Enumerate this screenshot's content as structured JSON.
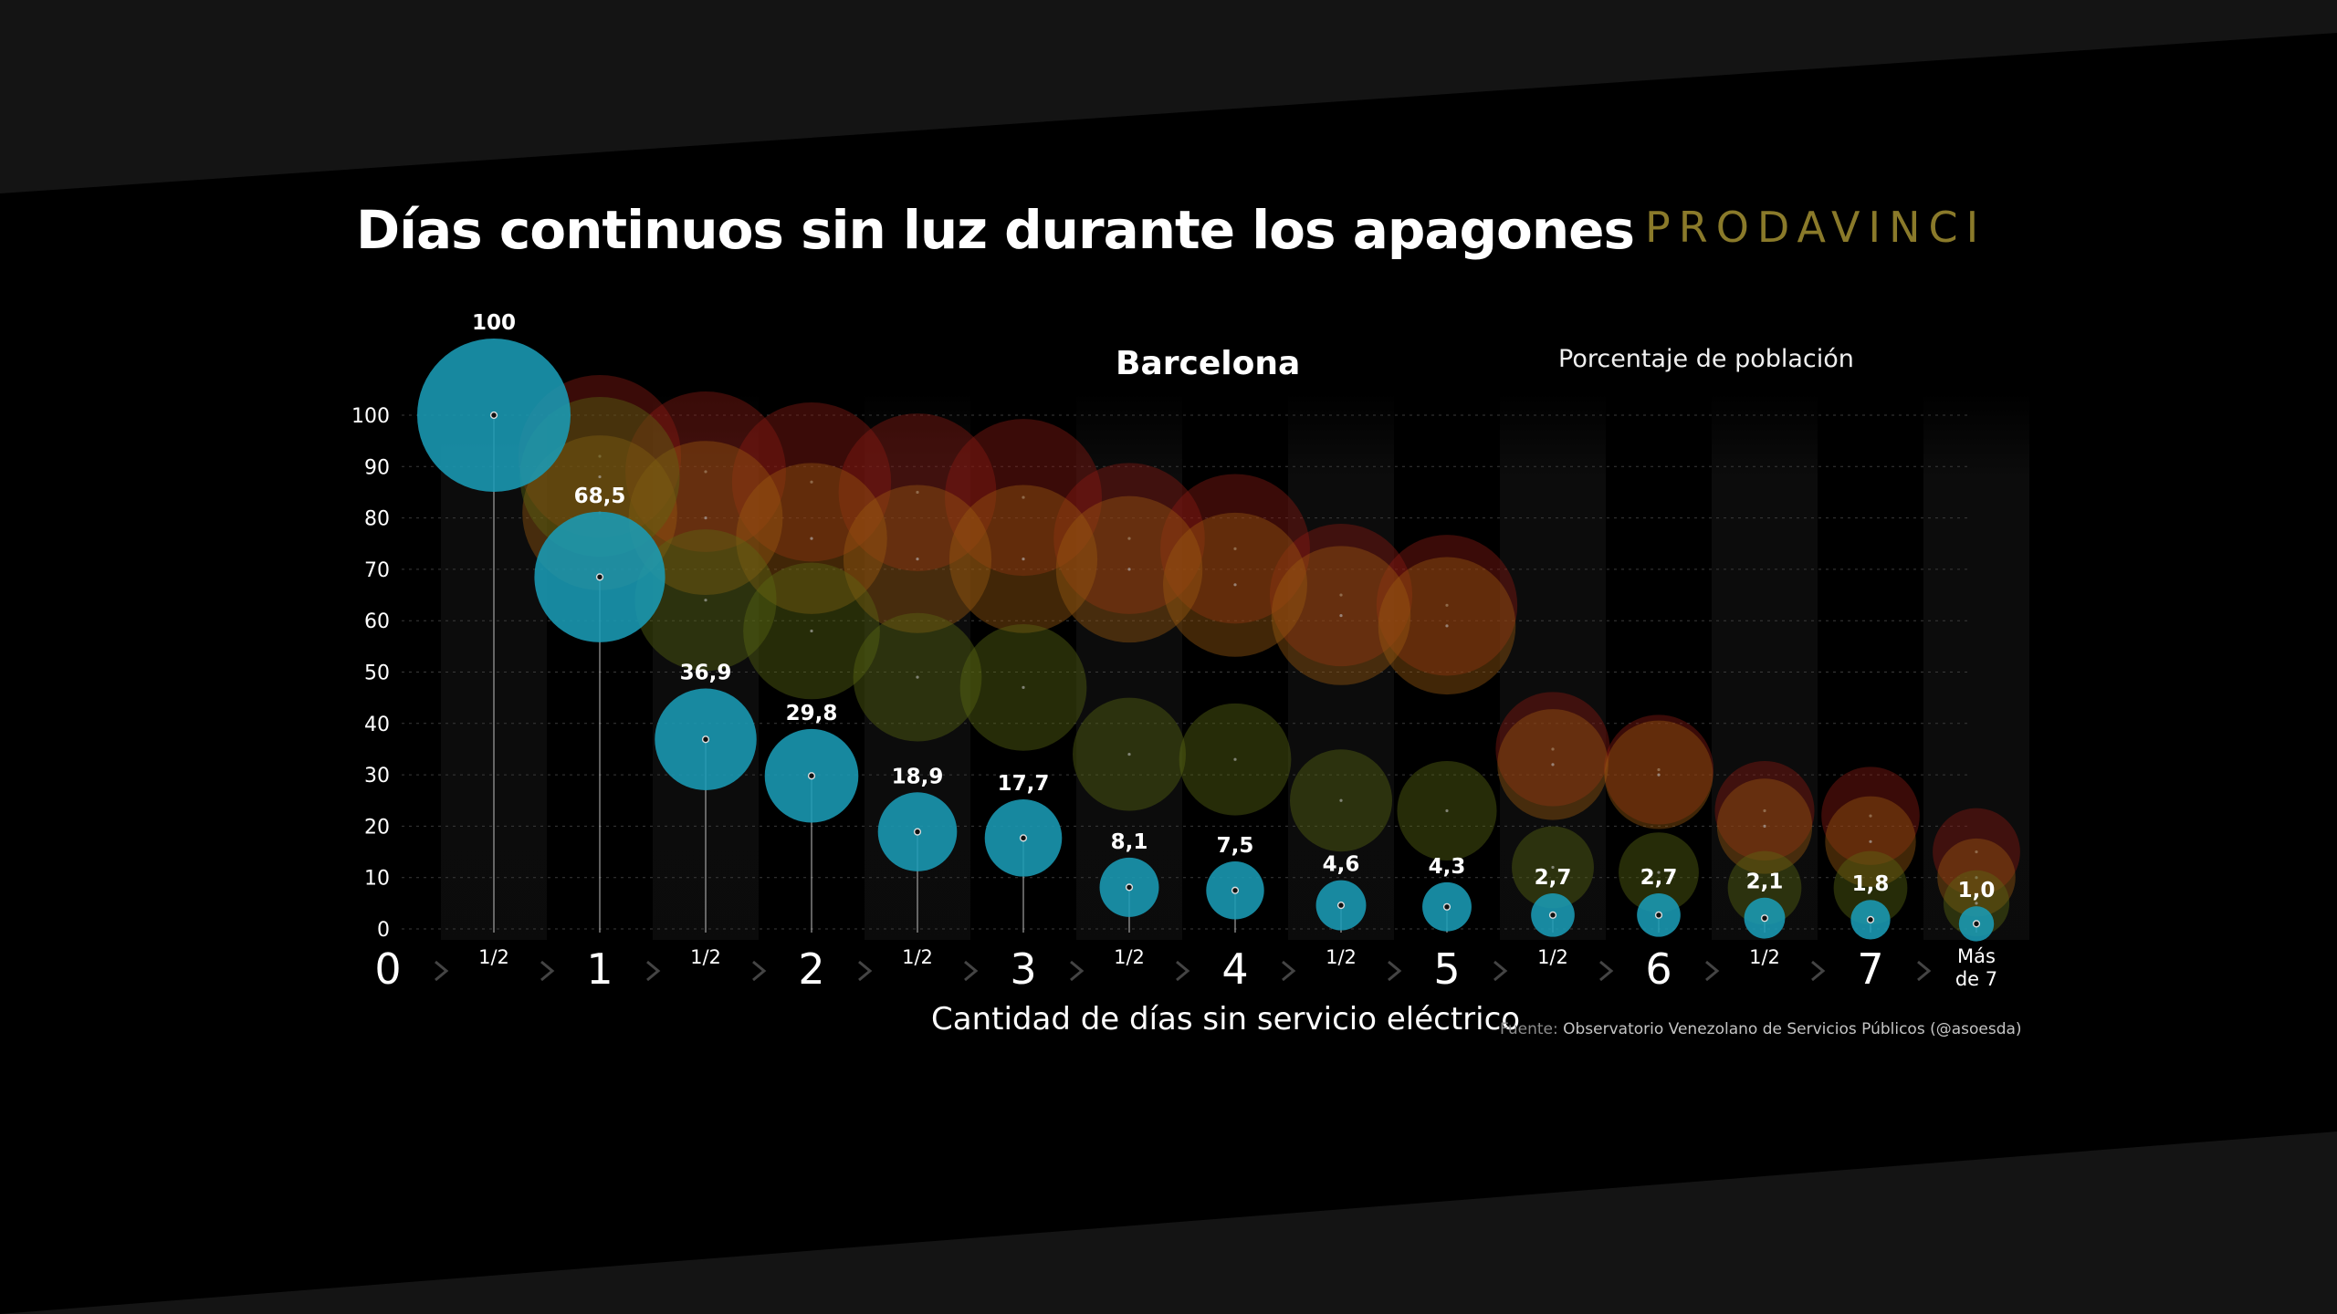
{
  "header": {
    "title": "Días continuos sin luz durante los apagones",
    "brand": "PRODAVINCI"
  },
  "subtitle_city": "Barcelona",
  "legend_note": "Porcentaje de población",
  "source": {
    "prefix": "Fuente:",
    "text": "Observatorio Venezolano de Servicios Públicos (@asoesda)"
  },
  "colors": {
    "highlight": "#1a9bb5",
    "background": "#000000",
    "band": "#141414",
    "brand": "#8a7a2a",
    "others_red": "#8a1a14",
    "others_orange": "#9a5a10",
    "others_olive": "#5a6a14"
  },
  "chart_data": {
    "type": "scatter",
    "title": "Días continuos sin luz durante los apagones",
    "xlabel": "Cantidad de días sin servicio eléctrico",
    "ylabel": "Porcentaje de población",
    "ylim": [
      0,
      100
    ],
    "yticks": [
      0,
      10,
      20,
      30,
      40,
      50,
      60,
      70,
      80,
      90,
      100
    ],
    "x_major_labels": [
      "0",
      "1",
      "2",
      "3",
      "4",
      "5",
      "6",
      "7"
    ],
    "x_minor_label": "1/2",
    "x_last_label": [
      "Más",
      "de 7"
    ],
    "categories": [
      "1/2",
      "1",
      "1/2",
      "2",
      "1/2",
      "3",
      "1/2",
      "4",
      "1/2",
      "5",
      "1/2",
      "6",
      "1/2",
      "7",
      "Más de 7"
    ],
    "series": [
      {
        "name": "Barcelona",
        "values": [
          100,
          68.5,
          36.9,
          29.8,
          18.9,
          17.7,
          8.1,
          7.5,
          4.6,
          4.3,
          2.7,
          2.7,
          2.1,
          1.8,
          1.0
        ],
        "labels": [
          "100",
          "68,5",
          "36,9",
          "29,8",
          "18,9",
          "17,7",
          "8,1",
          "7,5",
          "4,6",
          "4,3",
          "2,7",
          "2,7",
          "2,1",
          "1,8",
          "1,0"
        ]
      },
      {
        "values": [
          null,
          92,
          89,
          87,
          85,
          84,
          76,
          74,
          65,
          63,
          35,
          31,
          23,
          22,
          15
        ]
      },
      {
        "values": [
          null,
          81,
          80,
          76,
          72,
          72,
          70,
          67,
          61,
          59,
          32,
          30,
          20,
          17,
          10
        ]
      },
      {
        "values": [
          null,
          88,
          64,
          58,
          49,
          47,
          34,
          33,
          25,
          23,
          12,
          11,
          8,
          8,
          5
        ]
      }
    ],
    "grid": true,
    "legend": "none"
  }
}
